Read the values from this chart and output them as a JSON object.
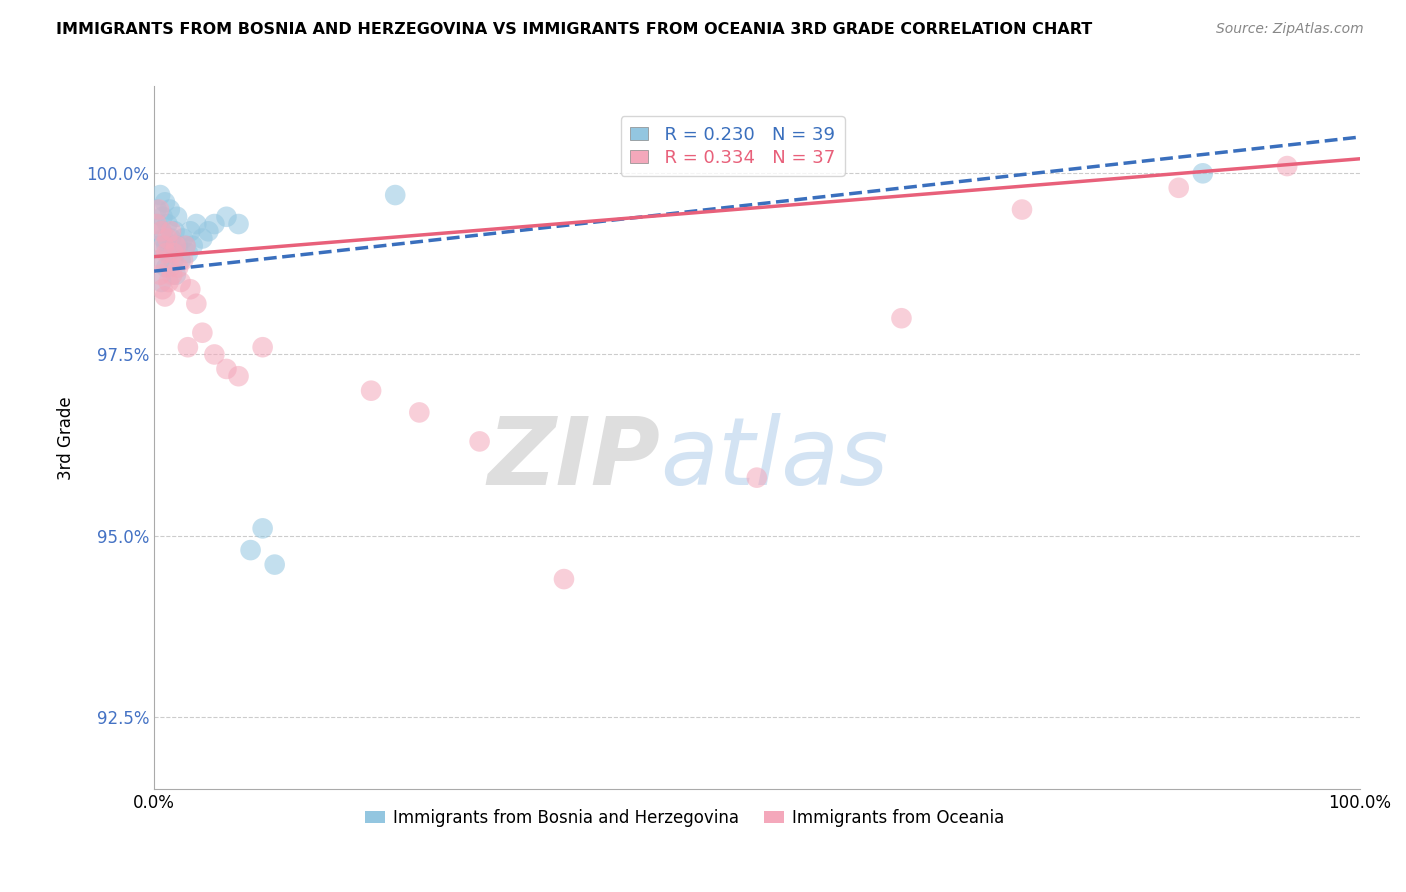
{
  "title": "IMMIGRANTS FROM BOSNIA AND HERZEGOVINA VS IMMIGRANTS FROM OCEANIA 3RD GRADE CORRELATION CHART",
  "source": "Source: ZipAtlas.com",
  "ylabel": "3rd Grade",
  "watermark_zip": "ZIP",
  "watermark_atlas": "atlas",
  "legend_blue_r": "R = 0.230",
  "legend_blue_n": "N = 39",
  "legend_pink_r": "R = 0.334",
  "legend_pink_n": "N = 37",
  "color_blue": "#93c6e0",
  "color_pink": "#f4a8bb",
  "line_blue": "#3a6fbd",
  "line_pink": "#e8607a",
  "xlim": [
    0.0,
    100.0
  ],
  "ylim": [
    91.5,
    101.2
  ],
  "yticks": [
    92.5,
    95.0,
    97.5,
    100.0
  ],
  "xticks": [
    0.0,
    100.0
  ],
  "blue_scatter_x": [
    0.2,
    0.3,
    0.4,
    0.5,
    0.5,
    0.6,
    0.6,
    0.7,
    0.8,
    0.9,
    1.0,
    1.0,
    1.1,
    1.2,
    1.3,
    1.4,
    1.5,
    1.6,
    1.7,
    1.8,
    1.9,
    2.0,
    2.2,
    2.4,
    2.6,
    2.8,
    3.0,
    3.2,
    3.5,
    4.0,
    4.5,
    5.0,
    6.0,
    7.0,
    8.0,
    9.0,
    10.0,
    20.0,
    87.0
  ],
  "blue_scatter_y": [
    99.5,
    99.3,
    99.0,
    99.7,
    98.8,
    99.2,
    98.5,
    99.4,
    99.1,
    99.6,
    99.0,
    98.7,
    99.3,
    98.9,
    99.5,
    99.1,
    99.0,
    98.8,
    99.2,
    98.6,
    99.4,
    99.0,
    98.8,
    99.1,
    99.0,
    98.9,
    99.2,
    99.0,
    99.3,
    99.1,
    99.2,
    99.3,
    99.4,
    99.3,
    94.8,
    95.1,
    94.6,
    99.7,
    100.0
  ],
  "pink_scatter_x": [
    0.2,
    0.3,
    0.4,
    0.5,
    0.6,
    0.7,
    0.8,
    0.9,
    1.0,
    1.1,
    1.2,
    1.3,
    1.4,
    1.5,
    1.6,
    1.8,
    2.0,
    2.2,
    2.4,
    2.6,
    2.8,
    3.0,
    3.5,
    4.0,
    5.0,
    6.0,
    7.0,
    9.0,
    18.0,
    22.0,
    27.0,
    34.0,
    50.0,
    62.0,
    72.0,
    85.0,
    94.0
  ],
  "pink_scatter_y": [
    99.3,
    98.8,
    99.5,
    98.6,
    99.2,
    98.4,
    99.0,
    98.3,
    98.9,
    99.1,
    98.5,
    98.7,
    99.2,
    98.6,
    98.9,
    99.0,
    98.7,
    98.5,
    98.8,
    99.0,
    97.6,
    98.4,
    98.2,
    97.8,
    97.5,
    97.3,
    97.2,
    97.6,
    97.0,
    96.7,
    96.3,
    94.4,
    95.8,
    98.0,
    99.5,
    99.8,
    100.1
  ],
  "line_blue_x0": 0.0,
  "line_blue_y0": 98.65,
  "line_blue_x1": 100.0,
  "line_blue_y1": 100.5,
  "line_pink_x0": 0.0,
  "line_pink_y0": 98.85,
  "line_pink_x1": 100.0,
  "line_pink_y1": 100.2
}
